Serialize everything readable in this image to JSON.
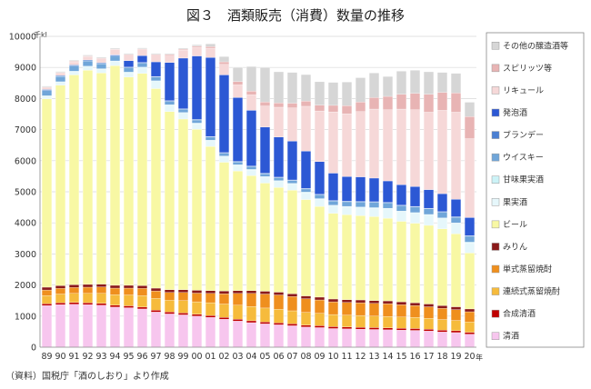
{
  "chart_data": {
    "type": "bar",
    "stacked": true,
    "title": "図３　酒類販売（消費）数量の推移",
    "ylabel_unit": "千kl",
    "xlabel_unit": "年",
    "ylim": [
      0,
      10000
    ],
    "yticks": [
      0,
      1000,
      2000,
      3000,
      4000,
      5000,
      6000,
      7000,
      8000,
      9000,
      10000
    ],
    "grid": true,
    "legend_placement": "right",
    "source": "（資料）国税庁「酒のしおり」より作成",
    "categories": [
      "89",
      "90",
      "91",
      "92",
      "93",
      "94",
      "95",
      "96",
      "97",
      "98",
      "99",
      "00",
      "01",
      "02",
      "03",
      "04",
      "05",
      "06",
      "07",
      "08",
      "09",
      "10",
      "11",
      "12",
      "13",
      "14",
      "15",
      "16",
      "17",
      "18",
      "19",
      "20"
    ],
    "series": [
      {
        "name": "清酒",
        "color": "#f7c6ee",
        "values": [
          1340,
          1370,
          1380,
          1370,
          1350,
          1290,
          1270,
          1230,
          1130,
          1070,
          1040,
          1000,
          960,
          900,
          840,
          790,
          750,
          720,
          690,
          650,
          630,
          600,
          590,
          580,
          570,
          560,
          550,
          540,
          520,
          490,
          470,
          420
        ]
      },
      {
        "name": "合成清酒",
        "color": "#c00000",
        "values": [
          60,
          60,
          60,
          60,
          60,
          60,
          60,
          60,
          60,
          60,
          60,
          60,
          60,
          60,
          60,
          60,
          60,
          60,
          60,
          60,
          60,
          60,
          60,
          60,
          60,
          60,
          60,
          60,
          60,
          60,
          60,
          60
        ]
      },
      {
        "name": "連続式蒸留焼酎",
        "color": "#f6bb3c",
        "values": [
          260,
          280,
          290,
          300,
          320,
          340,
          350,
          370,
          380,
          380,
          400,
          400,
          410,
          430,
          450,
          460,
          450,
          440,
          420,
          410,
          400,
          390,
          380,
          380,
          370,
          370,
          360,
          360,
          350,
          340,
          330,
          330
        ]
      },
      {
        "name": "単式蒸留焼酎",
        "color": "#ef8f1e",
        "values": [
          180,
          180,
          190,
          200,
          210,
          210,
          220,
          230,
          240,
          250,
          260,
          280,
          300,
          330,
          380,
          420,
          450,
          460,
          460,
          440,
          430,
          410,
          410,
          410,
          410,
          410,
          400,
          380,
          370,
          360,
          350,
          330
        ]
      },
      {
        "name": "みりん",
        "color": "#8b1a1a",
        "values": [
          90,
          90,
          90,
          90,
          90,
          90,
          90,
          90,
          90,
          90,
          90,
          90,
          90,
          90,
          90,
          90,
          90,
          90,
          90,
          90,
          90,
          90,
          90,
          90,
          90,
          90,
          90,
          90,
          90,
          90,
          90,
          90
        ]
      },
      {
        "name": "ビール",
        "color": "#f8f8a4",
        "values": [
          6060,
          6450,
          6750,
          6890,
          6790,
          7070,
          6700,
          6830,
          6420,
          5730,
          5490,
          5180,
          4640,
          4140,
          3850,
          3700,
          3480,
          3370,
          3330,
          3100,
          2920,
          2760,
          2730,
          2710,
          2700,
          2660,
          2590,
          2560,
          2530,
          2470,
          2350,
          1800
        ]
      },
      {
        "name": "果実酒",
        "color": "#e6f7fb",
        "values": [
          80,
          90,
          100,
          110,
          120,
          130,
          140,
          180,
          230,
          200,
          190,
          180,
          180,
          180,
          180,
          180,
          190,
          200,
          200,
          220,
          230,
          240,
          250,
          260,
          270,
          300,
          310,
          320,
          330,
          330,
          330,
          330
        ]
      },
      {
        "name": "甘味果実酒",
        "color": "#ccf3f7",
        "values": [
          20,
          20,
          20,
          20,
          20,
          20,
          20,
          20,
          20,
          20,
          20,
          20,
          20,
          20,
          20,
          20,
          20,
          20,
          20,
          20,
          20,
          20,
          20,
          20,
          20,
          20,
          20,
          20,
          20,
          20,
          20,
          20
        ]
      },
      {
        "name": "ウイスキー",
        "color": "#70a6d9",
        "values": [
          170,
          170,
          170,
          170,
          160,
          150,
          140,
          130,
          120,
          110,
          100,
          100,
          100,
          90,
          90,
          90,
          90,
          90,
          90,
          100,
          120,
          130,
          150,
          160,
          170,
          170,
          170,
          180,
          180,
          180,
          180,
          190
        ]
      },
      {
        "name": "ブランデー",
        "color": "#4a7fd2",
        "values": [
          30,
          30,
          30,
          30,
          30,
          30,
          20,
          20,
          20,
          20,
          20,
          20,
          20,
          20,
          20,
          20,
          20,
          20,
          20,
          20,
          20,
          20,
          20,
          20,
          20,
          20,
          20,
          20,
          20,
          20,
          20,
          20
        ]
      },
      {
        "name": "発泡酒",
        "color": "#2c58d4",
        "values": [
          0,
          0,
          0,
          0,
          0,
          20,
          210,
          220,
          470,
          1230,
          1630,
          2040,
          2540,
          2500,
          2050,
          1790,
          1480,
          1290,
          1250,
          1200,
          1050,
          880,
          790,
          790,
          760,
          690,
          660,
          640,
          600,
          580,
          560,
          580
        ]
      },
      {
        "name": "リキュール",
        "color": "#f6d8d8",
        "values": [
          60,
          80,
          100,
          110,
          130,
          160,
          180,
          200,
          220,
          230,
          260,
          280,
          300,
          340,
          410,
          500,
          680,
          960,
          1070,
          1440,
          1630,
          1970,
          2020,
          2100,
          2220,
          2290,
          2430,
          2470,
          2490,
          2680,
          2800,
          2540
        ]
      },
      {
        "name": "スピリッツ等",
        "color": "#e8b4b4",
        "values": [
          20,
          20,
          20,
          20,
          20,
          20,
          20,
          20,
          20,
          30,
          30,
          40,
          50,
          80,
          110,
          120,
          130,
          140,
          150,
          170,
          190,
          210,
          260,
          310,
          370,
          430,
          480,
          530,
          580,
          580,
          620,
          710
        ]
      },
      {
        "name": "その他の醸造酒等",
        "color": "#d6d6d6",
        "values": [
          30,
          30,
          30,
          30,
          30,
          30,
          30,
          30,
          30,
          30,
          30,
          40,
          90,
          170,
          450,
          790,
          1100,
          1000,
          990,
          850,
          750,
          740,
          760,
          780,
          790,
          640,
          740,
          740,
          720,
          640,
          630,
          460
        ]
      }
    ]
  }
}
